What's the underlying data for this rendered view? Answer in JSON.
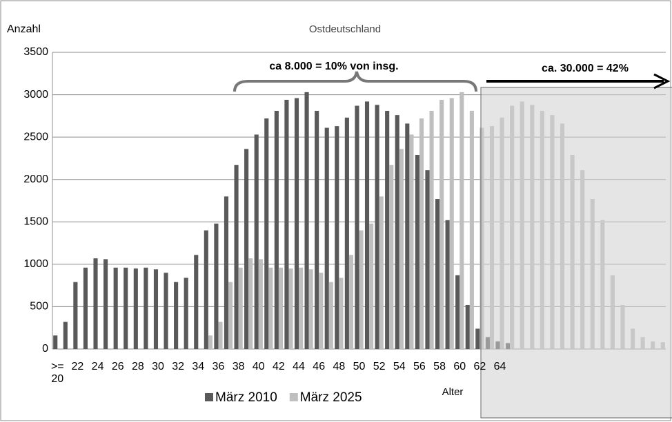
{
  "chart_data": {
    "type": "bar",
    "title": "Ostdeutschland",
    "y_label": "Anzahl",
    "x_label": "Alter",
    "annotations": [
      "ca 8.000 = 10% von insg.",
      "ca. 30.000 = 42%"
    ],
    "categories": [
      ">= 20",
      null,
      "22",
      null,
      "24",
      null,
      "26",
      null,
      "28",
      null,
      "30",
      null,
      "32",
      null,
      "34",
      null,
      "36",
      null,
      "38",
      null,
      "40",
      null,
      "42",
      null,
      "44",
      null,
      "46",
      null,
      "48",
      null,
      "50",
      null,
      "52",
      null,
      "54",
      null,
      "56",
      null,
      "58",
      null,
      "60",
      null,
      "62",
      null,
      "64",
      null,
      null,
      null,
      null,
      null,
      null,
      null,
      null,
      null,
      null,
      null,
      null,
      null,
      null,
      null,
      null
    ],
    "series": [
      {
        "name": "März 2010",
        "color": "#595959",
        "values": [
          160,
          320,
          790,
          960,
          1070,
          1060,
          960,
          960,
          950,
          960,
          940,
          900,
          790,
          840,
          1110,
          1400,
          1480,
          1800,
          2170,
          2360,
          2530,
          2720,
          2810,
          2940,
          2960,
          3030,
          2810,
          2610,
          2630,
          2730,
          2870,
          2920,
          2880,
          2810,
          2760,
          2660,
          2290,
          2110,
          1770,
          1520,
          870,
          520,
          240,
          140,
          90,
          70,
          null,
          null,
          null,
          null,
          null,
          null,
          null,
          null,
          null,
          null,
          null,
          null,
          null,
          null,
          null
        ]
      },
      {
        "name": "März 2025",
        "color": "#bfbfbf",
        "values": [
          null,
          null,
          null,
          null,
          null,
          null,
          null,
          null,
          null,
          null,
          null,
          null,
          null,
          null,
          null,
          160,
          320,
          790,
          960,
          1070,
          1060,
          960,
          960,
          950,
          960,
          940,
          900,
          790,
          840,
          1110,
          1400,
          1480,
          1800,
          2170,
          2360,
          2530,
          2720,
          2810,
          2940,
          2960,
          3030,
          2810,
          2610,
          2630,
          2730,
          2870,
          2920,
          2880,
          2810,
          2760,
          2660,
          2290,
          2110,
          1770,
          1520,
          870,
          520,
          240,
          140,
          90,
          80
        ]
      }
    ],
    "ylim": [
      0,
      3500
    ],
    "yticks": [
      0,
      500,
      1000,
      1500,
      2000,
      2500,
      3000,
      3500
    ],
    "grid": true,
    "legend": "bottom"
  }
}
